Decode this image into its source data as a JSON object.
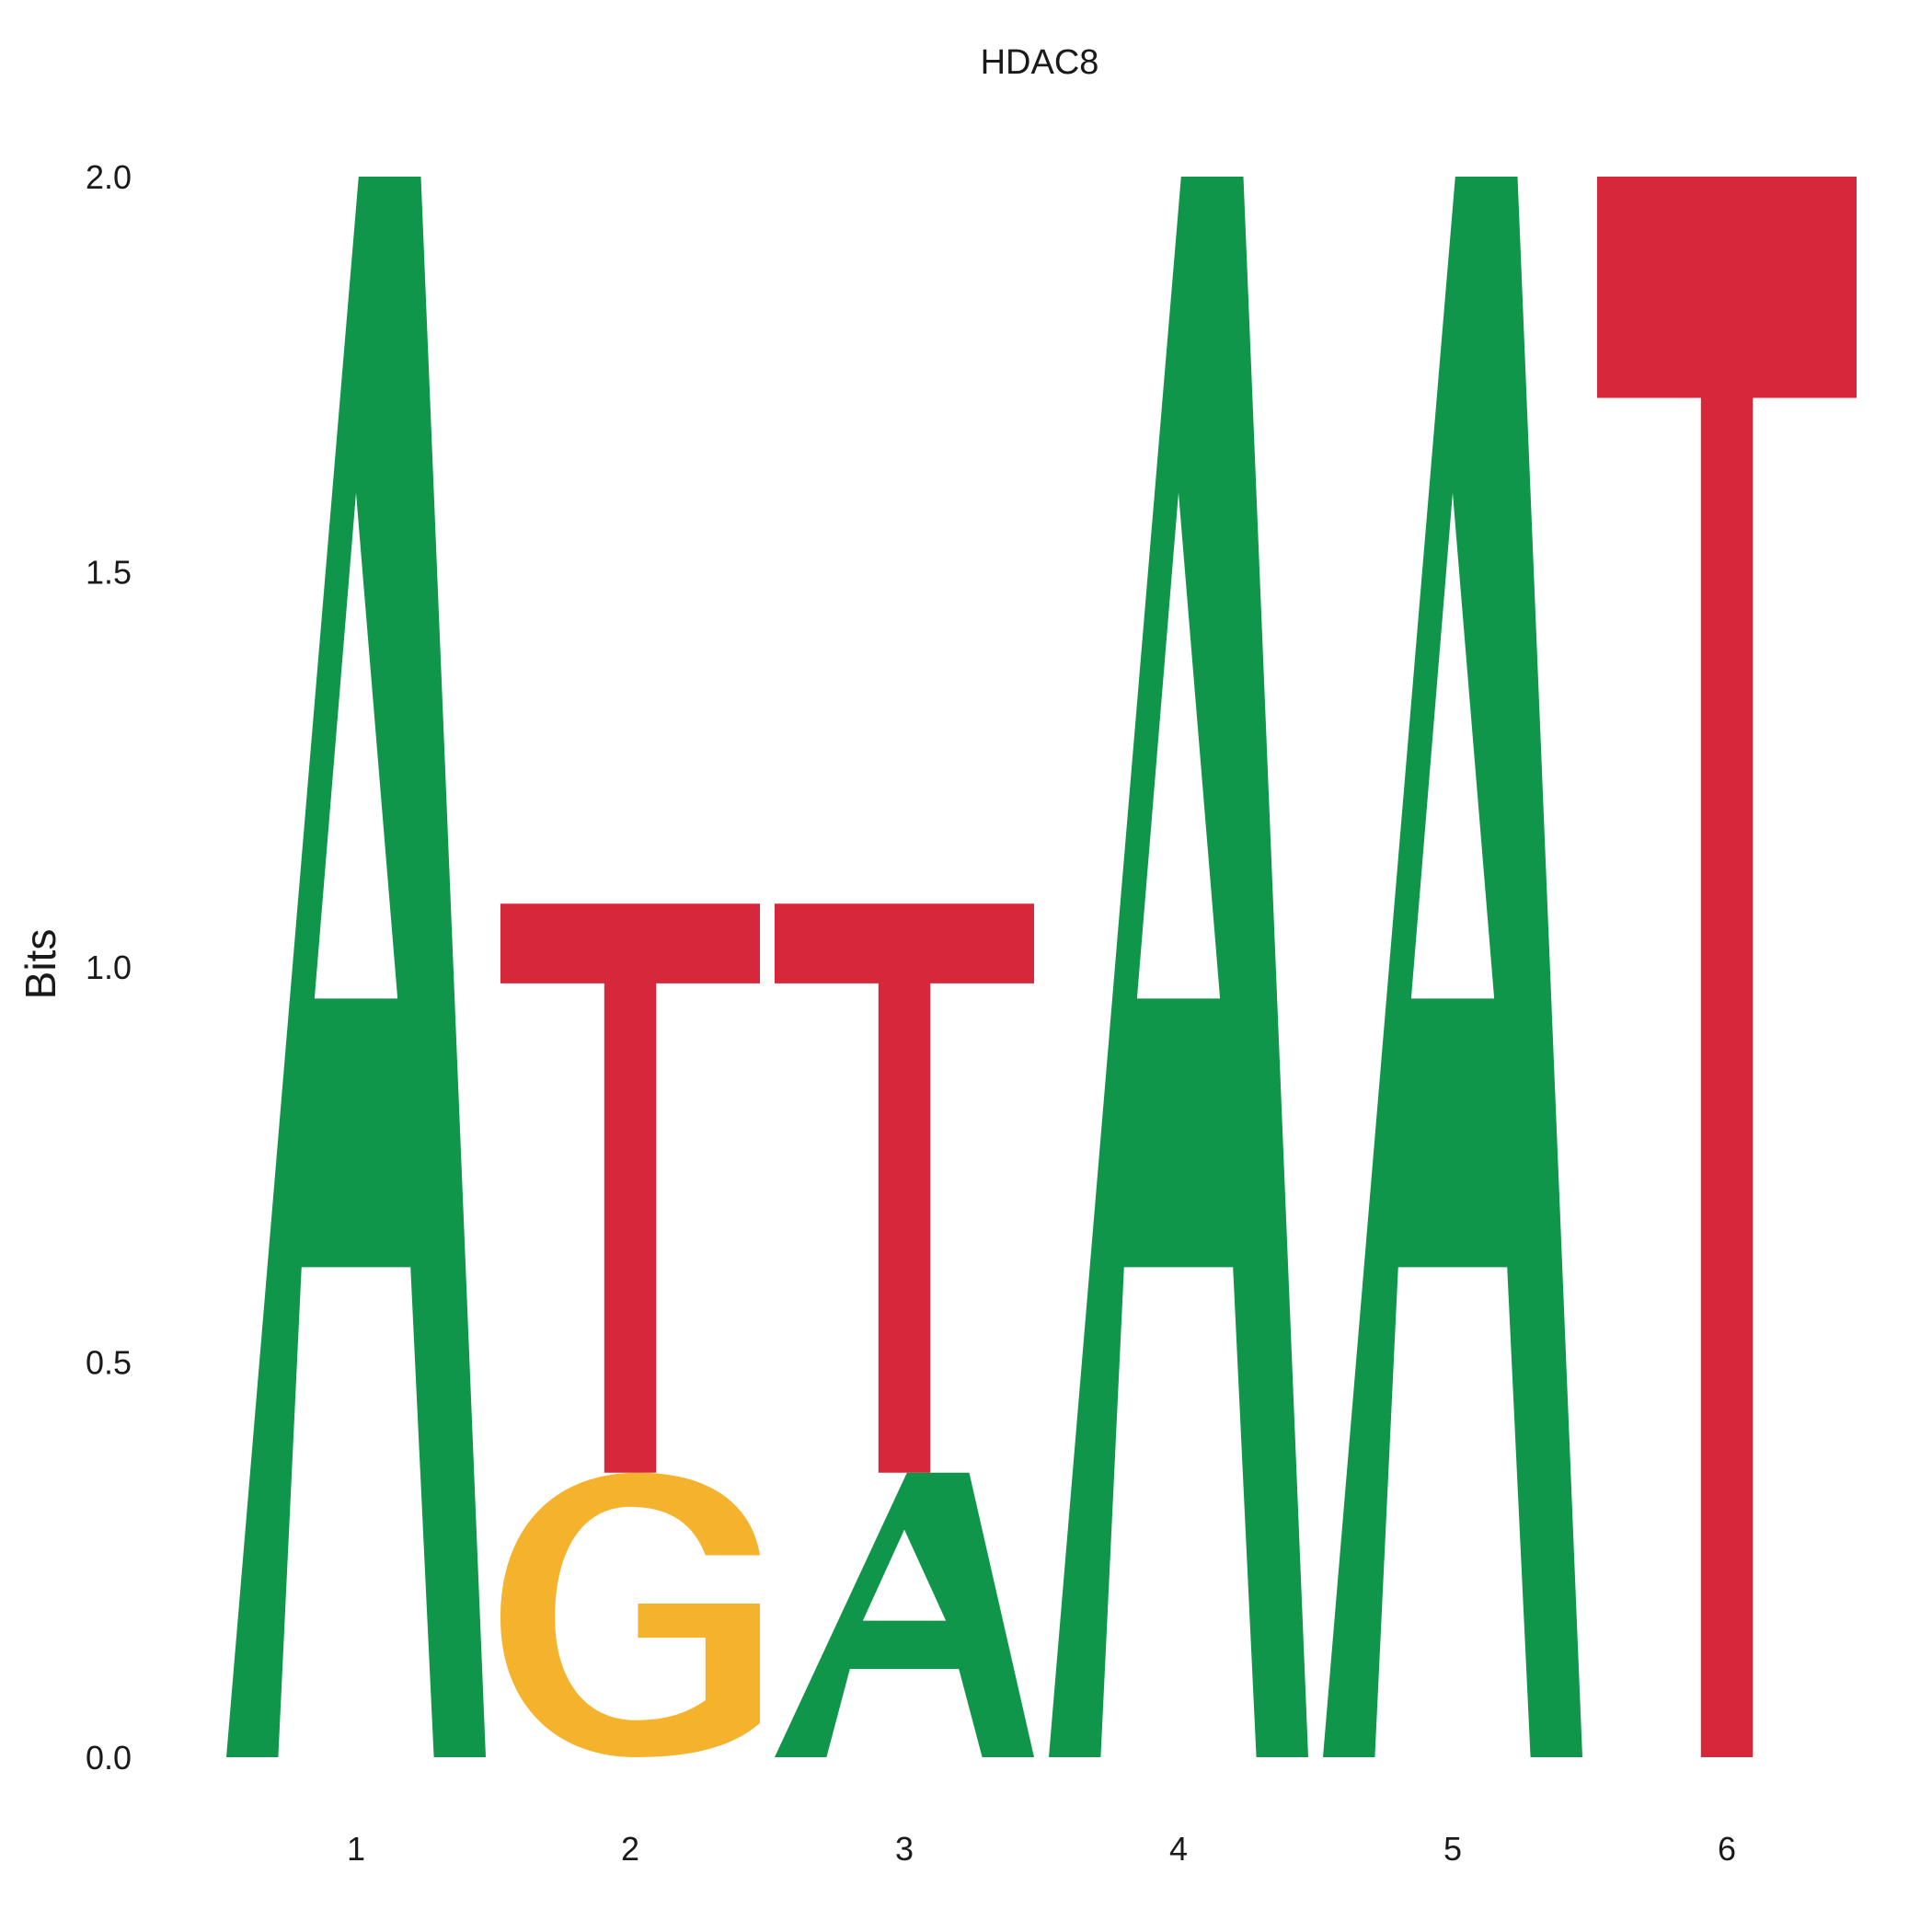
{
  "chart_data": {
    "type": "sequence-logo",
    "title": "HDAC8",
    "ylabel": "Bits",
    "xlabel": "",
    "ylim": [
      0,
      2
    ],
    "yticks": [
      "0.0",
      "0.5",
      "1.0",
      "1.5",
      "2.0"
    ],
    "grid": false,
    "legend": "none",
    "colors": {
      "A": "#10964a",
      "C": "#2a63b5",
      "G": "#f5b22d",
      "T": "#d7283b"
    },
    "positions": [
      {
        "label": "1",
        "stack": [
          {
            "letter": "A",
            "bits": 2.0
          }
        ]
      },
      {
        "label": "2",
        "stack": [
          {
            "letter": "G",
            "bits": 0.36
          },
          {
            "letter": "T",
            "bits": 0.72
          }
        ]
      },
      {
        "label": "3",
        "stack": [
          {
            "letter": "A",
            "bits": 0.36
          },
          {
            "letter": "T",
            "bits": 0.72
          }
        ]
      },
      {
        "label": "4",
        "stack": [
          {
            "letter": "A",
            "bits": 2.0
          }
        ]
      },
      {
        "label": "5",
        "stack": [
          {
            "letter": "A",
            "bits": 2.0
          }
        ]
      },
      {
        "label": "6",
        "stack": [
          {
            "letter": "T",
            "bits": 2.0
          }
        ]
      }
    ]
  }
}
